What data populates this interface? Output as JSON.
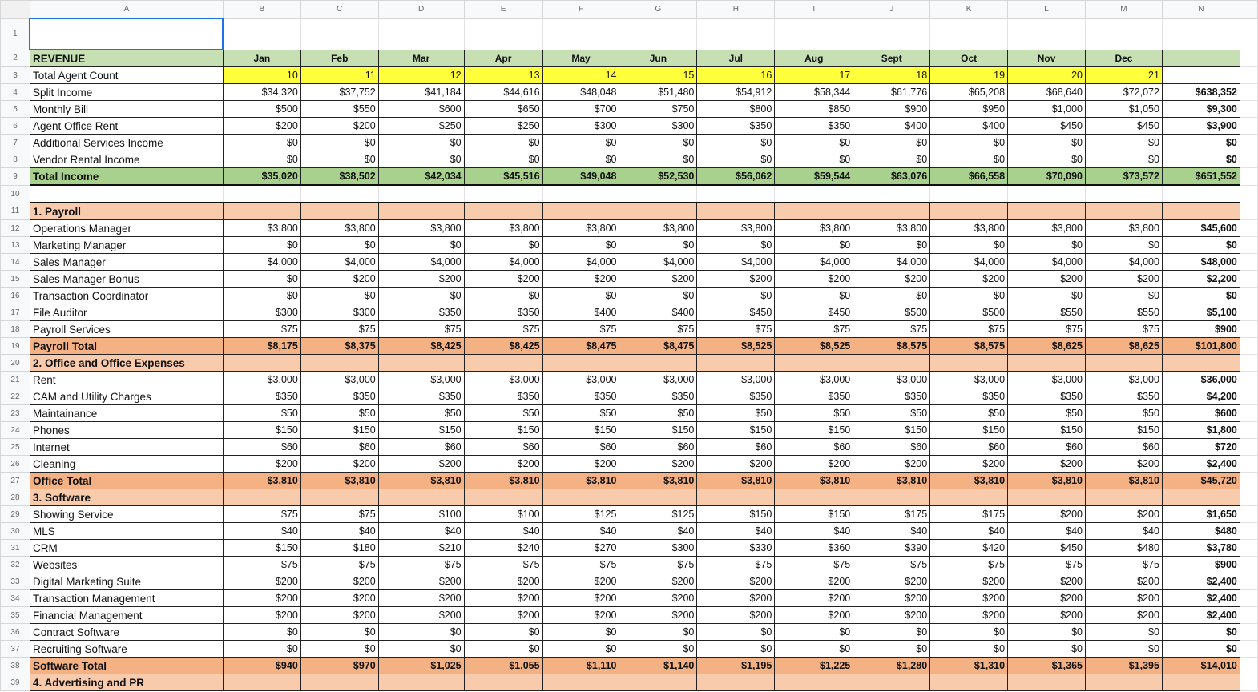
{
  "columns": [
    "A",
    "B",
    "C",
    "D",
    "E",
    "F",
    "G",
    "H",
    "I",
    "J",
    "K",
    "L",
    "M",
    "N"
  ],
  "months": [
    "Jan",
    "Feb",
    "Mar",
    "Apr",
    "May",
    "Jun",
    "Jul",
    "Aug",
    "Sept",
    "Oct",
    "Nov",
    "Dec"
  ],
  "colors": {
    "header_green": "#c6e0b4",
    "total_green": "#a9d18e",
    "agent_count_yellow": "#ffff3b",
    "section_peach": "#f8cbad",
    "total_peach": "#f4b183",
    "selection": "#1a73e8"
  },
  "rows": [
    {
      "n": "1",
      "type": "empty",
      "label": "",
      "values": [],
      "total": ""
    },
    {
      "n": "2",
      "type": "hdr",
      "label": "REVENUE",
      "values": [],
      "total": ""
    },
    {
      "n": "3",
      "type": "count",
      "label": "Total Agent Count",
      "values": [
        "10",
        "11",
        "12",
        "13",
        "14",
        "15",
        "16",
        "17",
        "18",
        "19",
        "20",
        "21"
      ],
      "total": ""
    },
    {
      "n": "4",
      "type": "data",
      "label": "Split Income",
      "values": [
        "$34,320",
        "$37,752",
        "$41,184",
        "$44,616",
        "$48,048",
        "$51,480",
        "$54,912",
        "$58,344",
        "$61,776",
        "$65,208",
        "$68,640",
        "$72,072"
      ],
      "total": "$638,352"
    },
    {
      "n": "5",
      "type": "data",
      "label": "Monthly Bill",
      "values": [
        "$500",
        "$550",
        "$600",
        "$650",
        "$700",
        "$750",
        "$800",
        "$850",
        "$900",
        "$950",
        "$1,000",
        "$1,050"
      ],
      "total": "$9,300"
    },
    {
      "n": "6",
      "type": "data",
      "label": "Agent Office Rent",
      "values": [
        "$200",
        "$200",
        "$250",
        "$250",
        "$300",
        "$300",
        "$350",
        "$350",
        "$400",
        "$400",
        "$450",
        "$450"
      ],
      "total": "$3,900"
    },
    {
      "n": "7",
      "type": "data",
      "label": "Additional Services Income",
      "values": [
        "$0",
        "$0",
        "$0",
        "$0",
        "$0",
        "$0",
        "$0",
        "$0",
        "$0",
        "$0",
        "$0",
        "$0"
      ],
      "total": "$0"
    },
    {
      "n": "8",
      "type": "data",
      "label": "Vendor Rental Income",
      "values": [
        "$0",
        "$0",
        "$0",
        "$0",
        "$0",
        "$0",
        "$0",
        "$0",
        "$0",
        "$0",
        "$0",
        "$0"
      ],
      "total": "$0"
    },
    {
      "n": "9",
      "type": "tinc",
      "label": "Total Income",
      "values": [
        "$35,020",
        "$38,502",
        "$42,034",
        "$45,516",
        "$49,048",
        "$52,530",
        "$56,062",
        "$59,544",
        "$63,076",
        "$66,558",
        "$70,090",
        "$73,572"
      ],
      "total": "$651,552"
    },
    {
      "n": "10",
      "type": "blank",
      "label": "",
      "values": [],
      "total": ""
    },
    {
      "n": "11",
      "type": "sec",
      "label": "1. Payroll",
      "values": [],
      "total": ""
    },
    {
      "n": "12",
      "type": "data",
      "label": "Operations Manager",
      "values": [
        "$3,800",
        "$3,800",
        "$3,800",
        "$3,800",
        "$3,800",
        "$3,800",
        "$3,800",
        "$3,800",
        "$3,800",
        "$3,800",
        "$3,800",
        "$3,800"
      ],
      "total": "$45,600"
    },
    {
      "n": "13",
      "type": "data",
      "label": "Marketing Manager",
      "values": [
        "$0",
        "$0",
        "$0",
        "$0",
        "$0",
        "$0",
        "$0",
        "$0",
        "$0",
        "$0",
        "$0",
        "$0"
      ],
      "total": "$0"
    },
    {
      "n": "14",
      "type": "data",
      "label": "Sales Manager",
      "values": [
        "$4,000",
        "$4,000",
        "$4,000",
        "$4,000",
        "$4,000",
        "$4,000",
        "$4,000",
        "$4,000",
        "$4,000",
        "$4,000",
        "$4,000",
        "$4,000"
      ],
      "total": "$48,000"
    },
    {
      "n": "15",
      "type": "data",
      "label": "Sales Manager Bonus",
      "values": [
        "$0",
        "$200",
        "$200",
        "$200",
        "$200",
        "$200",
        "$200",
        "$200",
        "$200",
        "$200",
        "$200",
        "$200"
      ],
      "total": "$2,200"
    },
    {
      "n": "16",
      "type": "data",
      "label": "Transaction Coordinator",
      "values": [
        "$0",
        "$0",
        "$0",
        "$0",
        "$0",
        "$0",
        "$0",
        "$0",
        "$0",
        "$0",
        "$0",
        "$0"
      ],
      "total": "$0"
    },
    {
      "n": "17",
      "type": "data",
      "label": "File Auditor",
      "values": [
        "$300",
        "$300",
        "$350",
        "$350",
        "$400",
        "$400",
        "$450",
        "$450",
        "$500",
        "$500",
        "$550",
        "$550"
      ],
      "total": "$5,100"
    },
    {
      "n": "18",
      "type": "data",
      "label": "Payroll Services",
      "values": [
        "$75",
        "$75",
        "$75",
        "$75",
        "$75",
        "$75",
        "$75",
        "$75",
        "$75",
        "$75",
        "$75",
        "$75"
      ],
      "total": "$900"
    },
    {
      "n": "19",
      "type": "tot",
      "label": "Payroll Total",
      "values": [
        "$8,175",
        "$8,375",
        "$8,425",
        "$8,425",
        "$8,475",
        "$8,475",
        "$8,525",
        "$8,525",
        "$8,575",
        "$8,575",
        "$8,625",
        "$8,625"
      ],
      "total": "$101,800"
    },
    {
      "n": "20",
      "type": "sec",
      "label": "2. Office and Office Expenses",
      "values": [],
      "total": ""
    },
    {
      "n": "21",
      "type": "data",
      "label": "Rent",
      "values": [
        "$3,000",
        "$3,000",
        "$3,000",
        "$3,000",
        "$3,000",
        "$3,000",
        "$3,000",
        "$3,000",
        "$3,000",
        "$3,000",
        "$3,000",
        "$3,000"
      ],
      "total": "$36,000"
    },
    {
      "n": "22",
      "type": "data",
      "label": "CAM and Utility Charges",
      "values": [
        "$350",
        "$350",
        "$350",
        "$350",
        "$350",
        "$350",
        "$350",
        "$350",
        "$350",
        "$350",
        "$350",
        "$350"
      ],
      "total": "$4,200"
    },
    {
      "n": "23",
      "type": "data",
      "label": "Maintainance",
      "values": [
        "$50",
        "$50",
        "$50",
        "$50",
        "$50",
        "$50",
        "$50",
        "$50",
        "$50",
        "$50",
        "$50",
        "$50"
      ],
      "total": "$600"
    },
    {
      "n": "24",
      "type": "data",
      "label": "Phones",
      "values": [
        "$150",
        "$150",
        "$150",
        "$150",
        "$150",
        "$150",
        "$150",
        "$150",
        "$150",
        "$150",
        "$150",
        "$150"
      ],
      "total": "$1,800"
    },
    {
      "n": "25",
      "type": "data",
      "label": "Internet",
      "values": [
        "$60",
        "$60",
        "$60",
        "$60",
        "$60",
        "$60",
        "$60",
        "$60",
        "$60",
        "$60",
        "$60",
        "$60"
      ],
      "total": "$720"
    },
    {
      "n": "26",
      "type": "data",
      "label": "Cleaning",
      "values": [
        "$200",
        "$200",
        "$200",
        "$200",
        "$200",
        "$200",
        "$200",
        "$200",
        "$200",
        "$200",
        "$200",
        "$200"
      ],
      "total": "$2,400"
    },
    {
      "n": "27",
      "type": "tot",
      "label": "Office Total",
      "values": [
        "$3,810",
        "$3,810",
        "$3,810",
        "$3,810",
        "$3,810",
        "$3,810",
        "$3,810",
        "$3,810",
        "$3,810",
        "$3,810",
        "$3,810",
        "$3,810"
      ],
      "total": "$45,720"
    },
    {
      "n": "28",
      "type": "sec",
      "label": "3. Software",
      "values": [],
      "total": ""
    },
    {
      "n": "29",
      "type": "data",
      "label": "Showing Service",
      "values": [
        "$75",
        "$75",
        "$100",
        "$100",
        "$125",
        "$125",
        "$150",
        "$150",
        "$175",
        "$175",
        "$200",
        "$200"
      ],
      "total": "$1,650"
    },
    {
      "n": "30",
      "type": "data",
      "label": "MLS",
      "values": [
        "$40",
        "$40",
        "$40",
        "$40",
        "$40",
        "$40",
        "$40",
        "$40",
        "$40",
        "$40",
        "$40",
        "$40"
      ],
      "total": "$480"
    },
    {
      "n": "31",
      "type": "data",
      "label": "CRM",
      "values": [
        "$150",
        "$180",
        "$210",
        "$240",
        "$270",
        "$300",
        "$330",
        "$360",
        "$390",
        "$420",
        "$450",
        "$480"
      ],
      "total": "$3,780"
    },
    {
      "n": "32",
      "type": "data",
      "label": "Websites",
      "values": [
        "$75",
        "$75",
        "$75",
        "$75",
        "$75",
        "$75",
        "$75",
        "$75",
        "$75",
        "$75",
        "$75",
        "$75"
      ],
      "total": "$900"
    },
    {
      "n": "33",
      "type": "data",
      "label": "Digital Marketing Suite",
      "values": [
        "$200",
        "$200",
        "$200",
        "$200",
        "$200",
        "$200",
        "$200",
        "$200",
        "$200",
        "$200",
        "$200",
        "$200"
      ],
      "total": "$2,400"
    },
    {
      "n": "34",
      "type": "data",
      "label": "Transaction Management",
      "values": [
        "$200",
        "$200",
        "$200",
        "$200",
        "$200",
        "$200",
        "$200",
        "$200",
        "$200",
        "$200",
        "$200",
        "$200"
      ],
      "total": "$2,400"
    },
    {
      "n": "35",
      "type": "data",
      "label": "Financial Management",
      "values": [
        "$200",
        "$200",
        "$200",
        "$200",
        "$200",
        "$200",
        "$200",
        "$200",
        "$200",
        "$200",
        "$200",
        "$200"
      ],
      "total": "$2,400"
    },
    {
      "n": "36",
      "type": "data",
      "label": "Contract Software",
      "values": [
        "$0",
        "$0",
        "$0",
        "$0",
        "$0",
        "$0",
        "$0",
        "$0",
        "$0",
        "$0",
        "$0",
        "$0"
      ],
      "total": "$0"
    },
    {
      "n": "37",
      "type": "data",
      "label": "Recruiting Software",
      "values": [
        "$0",
        "$0",
        "$0",
        "$0",
        "$0",
        "$0",
        "$0",
        "$0",
        "$0",
        "$0",
        "$0",
        "$0"
      ],
      "total": "$0"
    },
    {
      "n": "38",
      "type": "tot",
      "label": "Software Total",
      "values": [
        "$940",
        "$970",
        "$1,025",
        "$1,055",
        "$1,110",
        "$1,140",
        "$1,195",
        "$1,225",
        "$1,280",
        "$1,310",
        "$1,365",
        "$1,395"
      ],
      "total": "$14,010"
    },
    {
      "n": "39",
      "type": "sec",
      "label": "4. Advertising and PR",
      "values": [],
      "total": ""
    }
  ]
}
